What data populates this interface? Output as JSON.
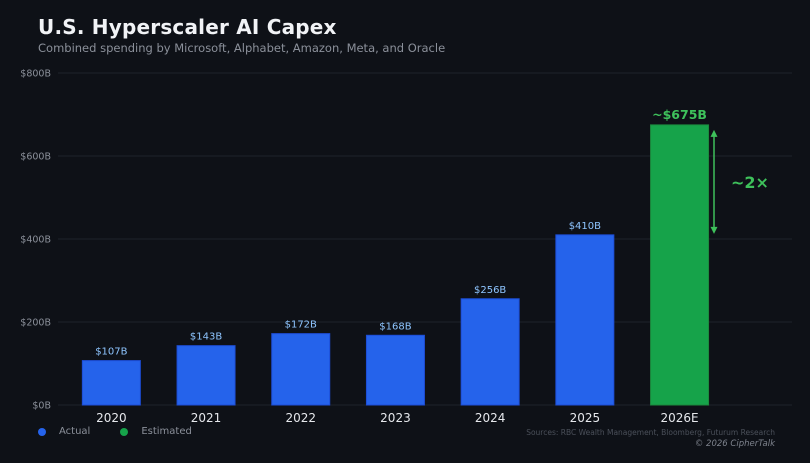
{
  "title": "U.S. Hyperscaler AI Capex",
  "subtitle": "Combined spending by Microsoft, Alphabet, Amazon, Meta, and Oracle",
  "legend": {
    "actual_label": "Actual",
    "estimated_label": "Estimated"
  },
  "sources": "Sources: RBC Wealth Management, Bloomberg, Futurum Research",
  "copyright": "© 2026 CipherTalk",
  "colors": {
    "actual": "#2563eb",
    "estimated": "#16a34a",
    "actual_label": "#8ec5ff",
    "estimated_label": "#3ec15b",
    "grid": "#1f232b",
    "axis_text": "#8b909a",
    "category_text": "#e6e8ec"
  },
  "chart_data": {
    "type": "bar",
    "title": "U.S. Hyperscaler AI Capex",
    "xlabel": "",
    "ylabel": "",
    "ylim": [
      0,
      800
    ],
    "yticks": [
      0,
      200,
      400,
      600,
      800
    ],
    "ytick_labels": [
      "$0B",
      "$200B",
      "$400B",
      "$600B",
      "$800B"
    ],
    "grid": true,
    "categories": [
      "2020",
      "2021",
      "2022",
      "2023",
      "2024",
      "2025",
      "2026E"
    ],
    "values": [
      107,
      143,
      172,
      168,
      256,
      410,
      675
    ],
    "value_labels": [
      "$107B",
      "$143B",
      "$172B",
      "$168B",
      "$256B",
      "$410B",
      "~$675B"
    ],
    "status": [
      "actual",
      "actual",
      "actual",
      "actual",
      "actual",
      "actual",
      "estimated"
    ],
    "annotation": {
      "text": "~2×",
      "from_value": 410,
      "to_value": 675
    }
  }
}
